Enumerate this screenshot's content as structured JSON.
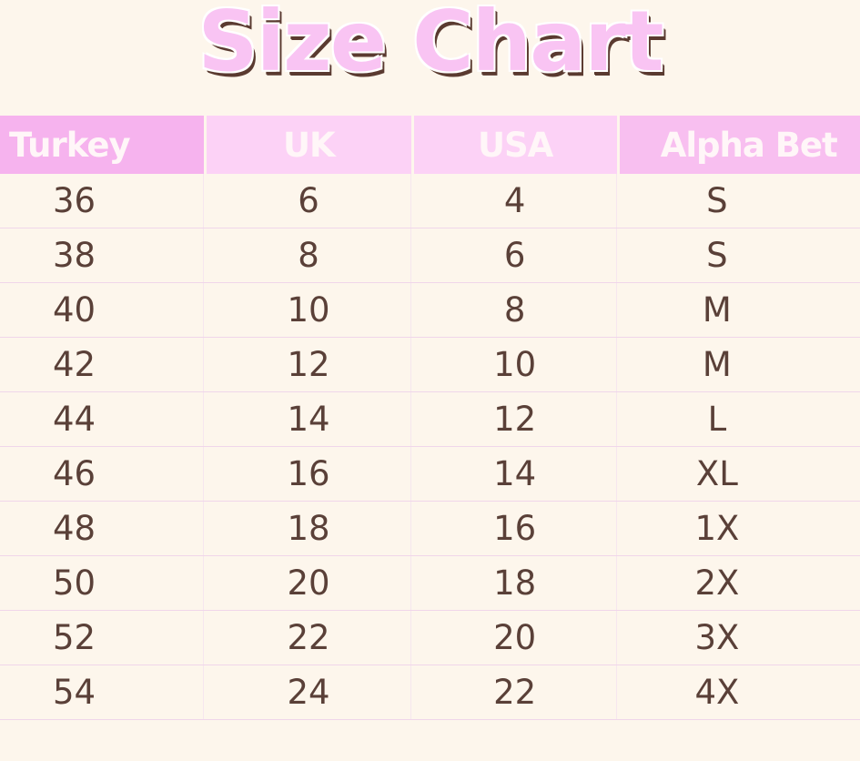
{
  "title": "Size Chart",
  "colors": {
    "header_pink": "#f6b3ee",
    "header_light": "#fcd2f6",
    "text": "#5a4038",
    "background": "#fdf6ec"
  },
  "headers": [
    "Turkey",
    "UK",
    "USA",
    "Alpha Bet"
  ],
  "rows": [
    [
      "36",
      "6",
      "4",
      "S"
    ],
    [
      "38",
      "8",
      "6",
      "S"
    ],
    [
      "40",
      "10",
      "8",
      "M"
    ],
    [
      "42",
      "12",
      "10",
      "M"
    ],
    [
      "44",
      "14",
      "12",
      "L"
    ],
    [
      "46",
      "16",
      "14",
      "XL"
    ],
    [
      "48",
      "18",
      "16",
      "1X"
    ],
    [
      "50",
      "20",
      "18",
      "2X"
    ],
    [
      "52",
      "22",
      "20",
      "3X"
    ],
    [
      "54",
      "24",
      "22",
      "4X"
    ]
  ]
}
